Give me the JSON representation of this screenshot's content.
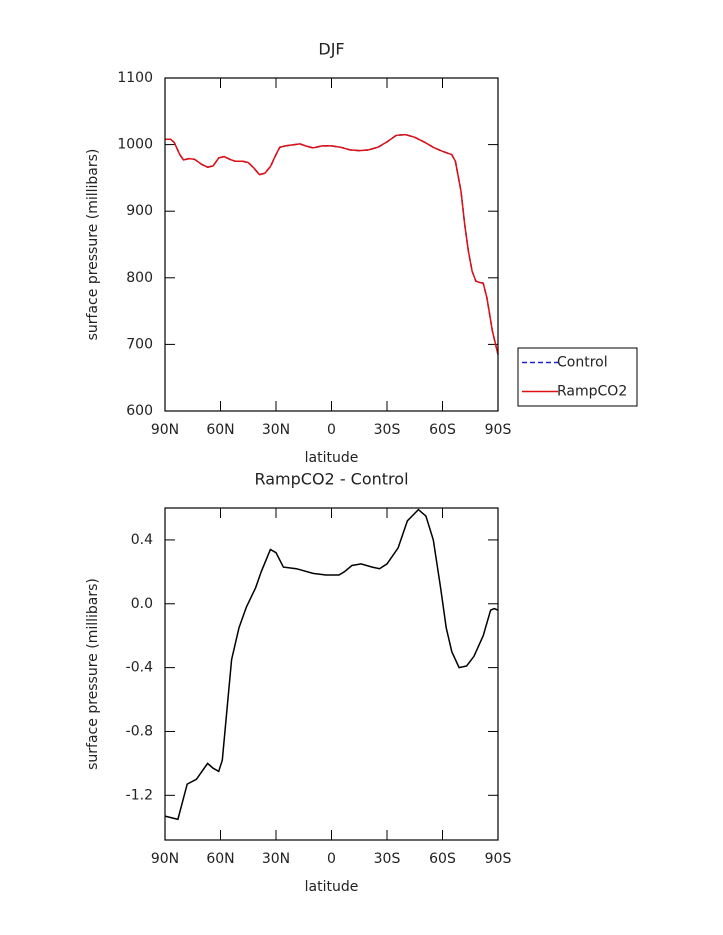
{
  "chart_data": [
    {
      "type": "line",
      "title": "DJF",
      "xlabel": "latitude",
      "ylabel": "surface pressure (millibars)",
      "x": [
        90,
        87,
        85,
        82,
        80,
        77,
        74,
        70,
        67,
        64,
        61,
        58,
        55,
        52,
        48,
        45,
        42,
        39,
        36,
        33,
        30,
        28,
        25,
        20,
        17,
        14,
        10,
        5,
        0,
        -5,
        -10,
        -15,
        -20,
        -25,
        -30,
        -35,
        -40,
        -45,
        -50,
        -55,
        -60,
        -63,
        -65,
        -67,
        -70,
        -72,
        -74,
        -76,
        -78,
        -80,
        -82,
        -84,
        -87,
        -90
      ],
      "series": [
        {
          "name": "Control",
          "color": "#2020d0",
          "dash": true,
          "values": [
            1008,
            1008,
            1003,
            985,
            977,
            979,
            978,
            970,
            966,
            968,
            980,
            982,
            978,
            975,
            975,
            973,
            965,
            955,
            957,
            967,
            985,
            996,
            998,
            1000,
            1001,
            998,
            995,
            998,
            998,
            996,
            992,
            991,
            992,
            996,
            1004,
            1014,
            1015,
            1011,
            1004,
            996,
            990,
            987,
            985,
            975,
            930,
            880,
            840,
            810,
            795,
            793,
            792,
            770,
            720,
            685
          ]
        },
        {
          "name": "RampCO2",
          "color": "#e01010",
          "dash": false,
          "values": [
            1008,
            1008,
            1003,
            985,
            977,
            979,
            978,
            970,
            966,
            968,
            980,
            982,
            978,
            975,
            975,
            973,
            965,
            955,
            957,
            967,
            985,
            996,
            998,
            1000,
            1001,
            998,
            995,
            998,
            998,
            996,
            992,
            991,
            992,
            996,
            1004,
            1014,
            1015,
            1011,
            1004,
            996,
            990,
            987,
            985,
            975,
            930,
            880,
            840,
            810,
            795,
            793,
            792,
            770,
            720,
            685
          ]
        }
      ],
      "xlim": [
        90,
        -90
      ],
      "xticks": [
        {
          "value": 90,
          "label": "90N"
        },
        {
          "value": 60,
          "label": "60N"
        },
        {
          "value": 30,
          "label": "30N"
        },
        0,
        {
          "value": -30,
          "label": "30S"
        },
        {
          "value": -60,
          "label": "60S"
        },
        {
          "value": -90,
          "label": "90S"
        }
      ],
      "ylim": [
        600,
        1100
      ],
      "yticks": [
        600,
        700,
        800,
        900,
        1000,
        1100
      ],
      "legend": "right"
    },
    {
      "type": "line",
      "title": "RampCO2 - Control",
      "xlabel": "latitude",
      "ylabel": "surface pressure (millibars)",
      "x": [
        90,
        83,
        78,
        73,
        67,
        64,
        61,
        59,
        56,
        54,
        50,
        46,
        41,
        38,
        33,
        30,
        26,
        19,
        10,
        3,
        -4,
        -7,
        -11,
        -16,
        -22,
        -26,
        -30,
        -36,
        -41,
        -47,
        -51,
        -55,
        -59,
        -62,
        -65,
        -69,
        -73,
        -77,
        -82,
        -86,
        -88,
        -90
      ],
      "series": [
        {
          "color": "#000000",
          "dash": false,
          "values": [
            -1.33,
            -1.35,
            -1.13,
            -1.1,
            -1.0,
            -1.03,
            -1.05,
            -0.98,
            -0.6,
            -0.35,
            -0.15,
            -0.02,
            0.1,
            0.2,
            0.34,
            0.32,
            0.23,
            0.22,
            0.19,
            0.18,
            0.18,
            0.2,
            0.24,
            0.25,
            0.23,
            0.22,
            0.25,
            0.35,
            0.52,
            0.59,
            0.55,
            0.4,
            0.1,
            -0.15,
            -0.3,
            -0.4,
            -0.39,
            -0.33,
            -0.2,
            -0.04,
            -0.03,
            -0.04
          ]
        }
      ],
      "xlim": [
        90,
        -90
      ],
      "xticks": [
        {
          "value": 90,
          "label": "90N"
        },
        {
          "value": 60,
          "label": "60N"
        },
        {
          "value": 30,
          "label": "30N"
        },
        0,
        {
          "value": -30,
          "label": "30S"
        },
        {
          "value": -60,
          "label": "60S"
        },
        {
          "value": -90,
          "label": "90S"
        }
      ],
      "ylim": [
        -1.48,
        0.6
      ],
      "yticks": [
        -1.2,
        -0.8,
        -0.4,
        {
          "value": 0,
          "label": "0.0"
        },
        0.4
      ]
    }
  ]
}
